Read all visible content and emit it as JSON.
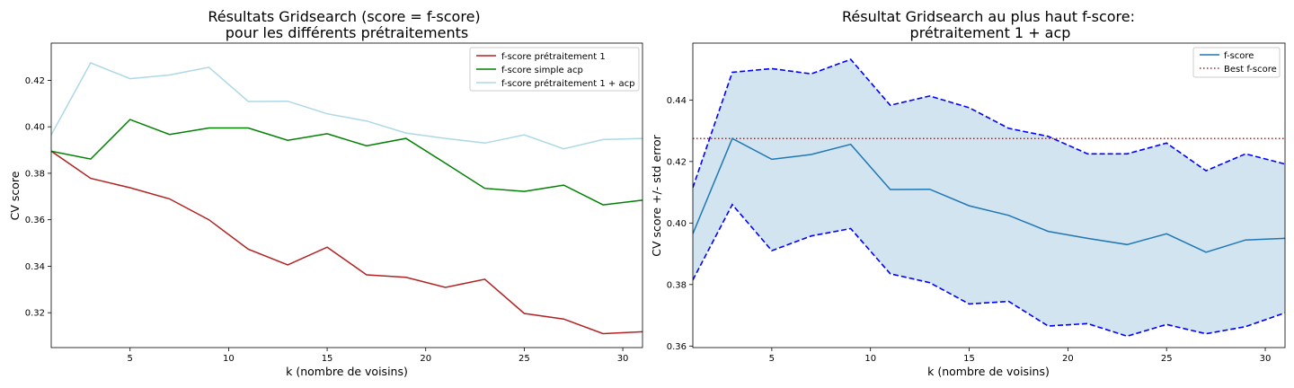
{
  "chart_data": [
    {
      "type": "line",
      "title": "Résultats Gridsearch (score = f-score)",
      "subtitle": "pour les différents prétraitements",
      "xlabel": "k (nombre de voisins)",
      "ylabel": "CV score",
      "xlim": [
        1,
        31
      ],
      "ylim": [
        0.305,
        0.436
      ],
      "xticks": [
        5,
        10,
        15,
        20,
        25,
        30
      ],
      "yticks": [
        0.32,
        0.34,
        0.36,
        0.38,
        0.4,
        0.42
      ],
      "ytick_labels": [
        "0.32",
        "0.34",
        "0.36",
        "0.38",
        "0.40",
        "0.42"
      ],
      "grid": false,
      "legend_position": "top-right",
      "x": [
        1,
        3,
        5,
        7,
        9,
        11,
        13,
        15,
        17,
        19,
        21,
        23,
        25,
        27,
        29,
        31
      ],
      "series": [
        {
          "name": "f-score prétraitement 1",
          "color": "#b22222",
          "style": "solid",
          "values": [
            0.3895,
            0.3778,
            0.3738,
            0.369,
            0.36,
            0.3473,
            0.3406,
            0.3482,
            0.3363,
            0.3352,
            0.3309,
            0.3344,
            0.3197,
            0.3173,
            0.311,
            0.3118
          ]
        },
        {
          "name": "f-score simple acp",
          "color": "#008000",
          "style": "solid",
          "values": [
            0.3895,
            0.3861,
            0.4031,
            0.3967,
            0.3995,
            0.3995,
            0.3942,
            0.397,
            0.3918,
            0.395,
            0.3843,
            0.3735,
            0.3722,
            0.3749,
            0.3664,
            0.3684
          ]
        },
        {
          "name": "f-score prétraitement 1 + acp",
          "color": "#add8e6",
          "style": "solid",
          "values": [
            0.3965,
            0.4275,
            0.4207,
            0.4223,
            0.4256,
            0.4109,
            0.411,
            0.4056,
            0.4025,
            0.3973,
            0.395,
            0.393,
            0.3965,
            0.3905,
            0.3945,
            0.395
          ]
        }
      ]
    },
    {
      "type": "line",
      "title": "Résultat Gridsearch au plus haut f-score:",
      "subtitle": "prétraitement 1 + acp",
      "xlabel": "k (nombre de voisins)",
      "ylabel": "CV score +/- std error",
      "xlim": [
        1,
        31
      ],
      "ylim": [
        0.3595,
        0.4585
      ],
      "xticks": [
        5,
        10,
        15,
        20,
        25,
        30
      ],
      "yticks": [
        0.36,
        0.38,
        0.4,
        0.42,
        0.44
      ],
      "ytick_labels": [
        "0.36",
        "0.38",
        "0.40",
        "0.42",
        "0.44"
      ],
      "grid": false,
      "legend_position": "top-right",
      "x": [
        1,
        3,
        5,
        7,
        9,
        11,
        13,
        15,
        17,
        19,
        21,
        23,
        25,
        27,
        29,
        31
      ],
      "series": [
        {
          "name": "f-score",
          "color": "#1f77b4",
          "style": "solid",
          "values": [
            0.3965,
            0.4275,
            0.4207,
            0.4223,
            0.4256,
            0.4109,
            0.411,
            0.4056,
            0.4025,
            0.3973,
            0.395,
            0.393,
            0.3965,
            0.3905,
            0.3945,
            0.395
          ]
        }
      ],
      "band": {
        "fill": "#1f77b4",
        "opacity": 0.2,
        "edge_color": "#0000ff",
        "upper": [
          0.4115,
          0.449,
          0.4502,
          0.4485,
          0.4532,
          0.4383,
          0.4413,
          0.4375,
          0.4308,
          0.4282,
          0.4225,
          0.4225,
          0.426,
          0.417,
          0.4225,
          0.4192
        ],
        "lower": [
          0.3815,
          0.406,
          0.391,
          0.3958,
          0.3982,
          0.3835,
          0.3806,
          0.3737,
          0.3745,
          0.3665,
          0.3673,
          0.3632,
          0.367,
          0.364,
          0.3663,
          0.3708
        ]
      },
      "reference_line": {
        "name": "Best f-score",
        "value": 0.4275,
        "color": "#b22222",
        "style": "dotted"
      }
    }
  ]
}
